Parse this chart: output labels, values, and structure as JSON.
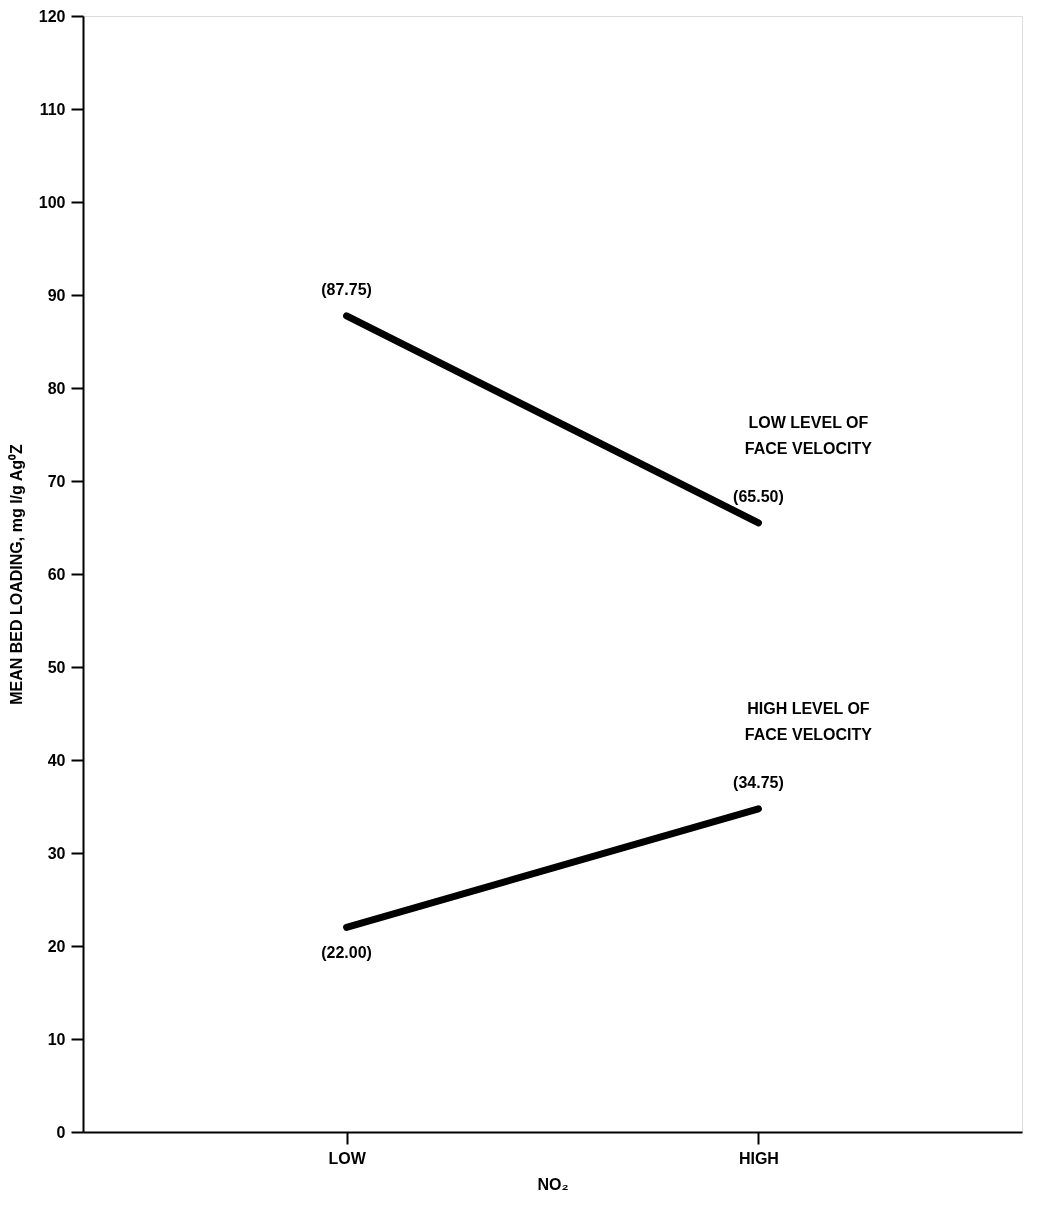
{
  "chart_data": {
    "type": "line",
    "xlabel": "NO₂",
    "ylabel": "MEAN BED LOADING, mg I/g Ag⁰Z",
    "categories": [
      "LOW",
      "HIGH"
    ],
    "series": [
      {
        "name": "LOW LEVEL OF FACE VELOCITY",
        "color": "#000000",
        "values": [
          87.75,
          65.5
        ],
        "value_labels": [
          "(87.75)",
          "(65.50)"
        ]
      },
      {
        "name": "HIGH LEVEL OF FACE VELOCITY",
        "color": "#000000",
        "values": [
          22.0,
          34.75
        ],
        "value_labels": [
          "(22.00)",
          "(34.75)"
        ]
      }
    ],
    "ylim": [
      0,
      120
    ],
    "yticks": [
      0,
      10,
      20,
      30,
      40,
      50,
      60,
      70,
      80,
      90,
      100,
      110,
      120
    ],
    "grid": false,
    "marker": "none",
    "line_style": "solid"
  }
}
